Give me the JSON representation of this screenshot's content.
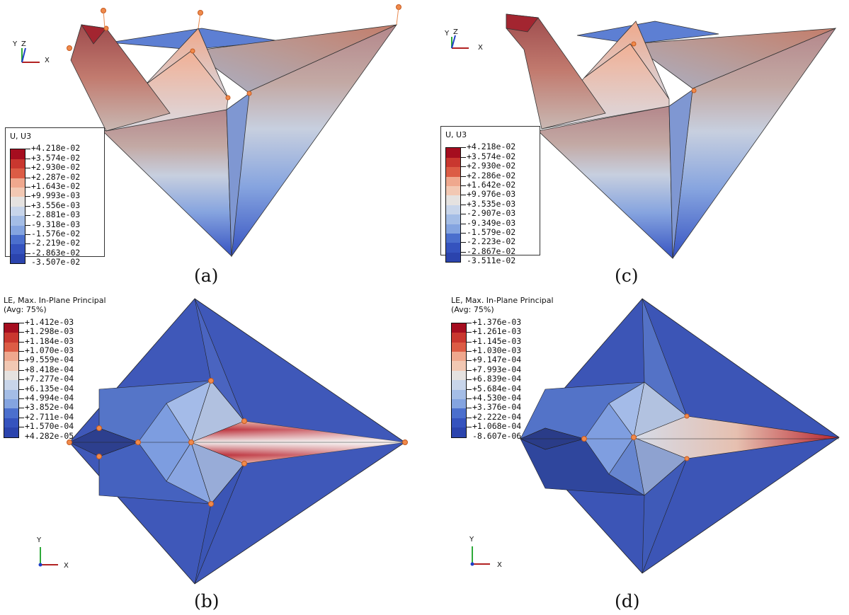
{
  "colors": [
    "#a50d1f",
    "#c9372f",
    "#dc5c45",
    "#e7826a",
    "#efa88e",
    "#f2c8b3",
    "#e5e2e0",
    "#c8d5ea",
    "#a4bde6",
    "#84a4e0",
    "#678ad6",
    "#4b6fcd",
    "#3553be",
    "#2b44ad"
  ],
  "panels": {
    "a": {
      "caption": "(a)",
      "legend_title": "U, U3",
      "legend_values": [
        "+4.218e-02",
        "+3.574e-02",
        "+2.930e-02",
        "+2.287e-02",
        "+1.643e-02",
        "+9.993e-03",
        "+3.556e-03",
        "-2.881e-03",
        "-9.318e-03",
        "-1.576e-02",
        "-2.219e-02",
        "-2.863e-02",
        "-3.507e-02"
      ],
      "axes": {
        "labels": [
          "Y",
          "Z",
          "X"
        ]
      }
    },
    "b": {
      "caption": "(b)",
      "legend_title": "LE, Max. In-Plane Principal\n(Avg: 75%)",
      "legend_values": [
        "+1.412e-03",
        "+1.298e-03",
        "+1.184e-03",
        "+1.070e-03",
        "+9.559e-04",
        "+8.418e-04",
        "+7.277e-04",
        "+6.135e-04",
        "+4.994e-04",
        "+3.852e-04",
        "+2.711e-04",
        "+1.570e-04",
        "+4.282e-05"
      ],
      "axes": {
        "labels": [
          "Y",
          "X"
        ]
      }
    },
    "c": {
      "caption": "(c)",
      "legend_title": "U, U3",
      "legend_values": [
        "+4.218e-02",
        "+3.574e-02",
        "+2.930e-02",
        "+2.286e-02",
        "+1.642e-02",
        "+9.976e-03",
        "+3.535e-03",
        "-2.907e-03",
        "-9.349e-03",
        "-1.579e-02",
        "-2.223e-02",
        "-2.867e-02",
        "-3.511e-02"
      ],
      "axes": {
        "labels": [
          "Y",
          "Z",
          "X"
        ]
      }
    },
    "d": {
      "caption": "(d)",
      "legend_title": "LE, Max. In-Plane Principal\n(Avg: 75%)",
      "legend_values": [
        "+1.376e-03",
        "+1.261e-03",
        "+1.145e-03",
        "+1.030e-03",
        "+9.147e-04",
        "+7.993e-04",
        "+6.839e-04",
        "+5.684e-04",
        "+4.530e-04",
        "+3.376e-04",
        "+2.222e-04",
        "+1.068e-04",
        "-8.607e-06"
      ],
      "axes": {
        "labels": [
          "Y",
          "X"
        ]
      }
    }
  }
}
